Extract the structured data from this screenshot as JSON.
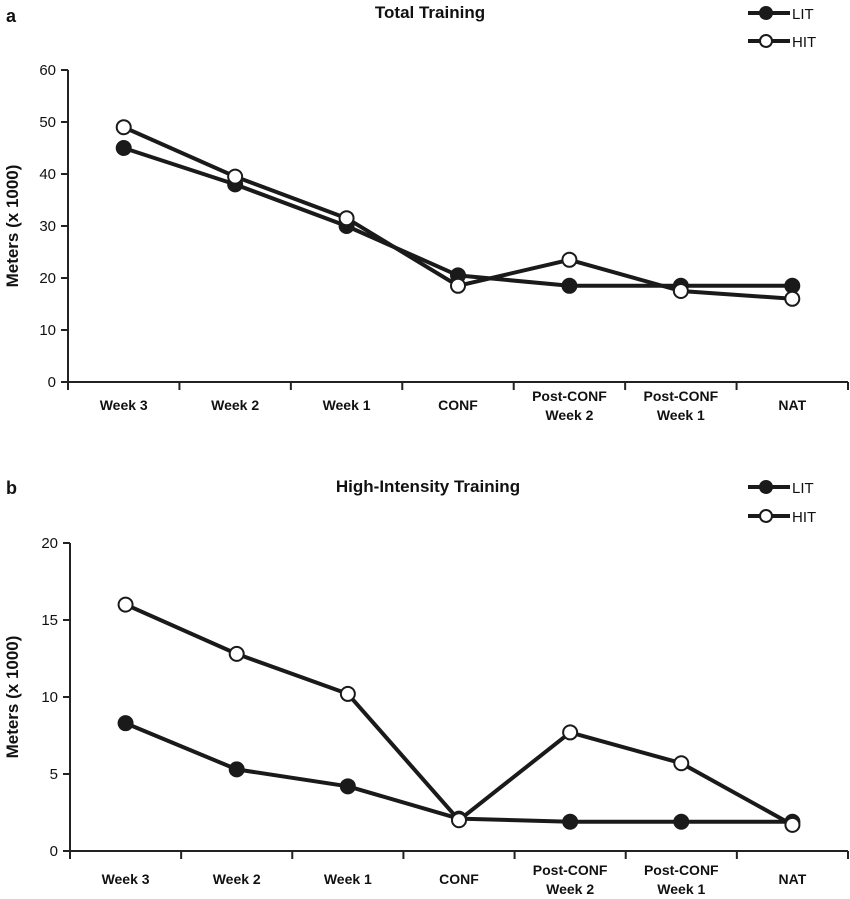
{
  "chart_data": [
    {
      "panel": "a",
      "type": "line",
      "title": "Total Training",
      "ylabel": "Meters (x 1000)",
      "xlabel": "",
      "categories": [
        "Week 3",
        "Week 2",
        "Week 1",
        "CONF",
        "Post-CONF\nWeek 2",
        "Post-CONF\nWeek 1",
        "NAT"
      ],
      "ylim": [
        0,
        60
      ],
      "yticks": [
        0,
        10,
        20,
        30,
        40,
        50,
        60
      ],
      "grid": false,
      "legend_position": "top-right",
      "series": [
        {
          "name": "LIT",
          "marker": "filled",
          "color": "#1a1a1a",
          "values": [
            45,
            38,
            30,
            20.5,
            18.5,
            18.5,
            18.5
          ]
        },
        {
          "name": "HIT",
          "marker": "open",
          "color": "#1a1a1a",
          "values": [
            49,
            39.5,
            31.5,
            18.5,
            23.5,
            17.5,
            16
          ]
        }
      ]
    },
    {
      "panel": "b",
      "type": "line",
      "title": "High-Intensity Training",
      "ylabel": "Meters (x 1000)",
      "xlabel": "",
      "categories": [
        "Week 3",
        "Week 2",
        "Week 1",
        "CONF",
        "Post-CONF\nWeek 2",
        "Post-CONF\nWeek 1",
        "NAT"
      ],
      "ylim": [
        0,
        20
      ],
      "yticks": [
        0,
        5,
        10,
        15,
        20
      ],
      "grid": false,
      "legend_position": "top-right",
      "series": [
        {
          "name": "LIT",
          "marker": "filled",
          "color": "#1a1a1a",
          "values": [
            8.3,
            5.3,
            4.2,
            2.1,
            1.9,
            1.9,
            1.9
          ]
        },
        {
          "name": "HIT",
          "marker": "open",
          "color": "#1a1a1a",
          "values": [
            16,
            12.8,
            10.2,
            2.0,
            7.7,
            5.7,
            1.7
          ]
        }
      ]
    }
  ]
}
